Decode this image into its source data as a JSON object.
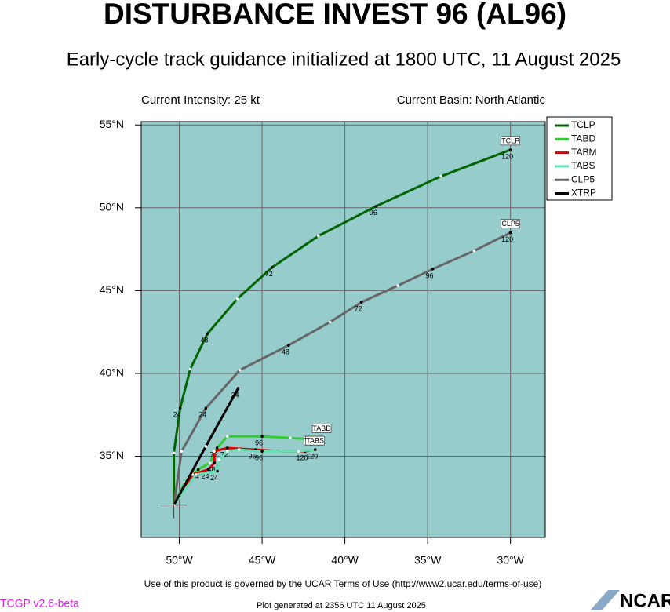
{
  "chart_data": {
    "type": "line",
    "title": "DISTURBANCE INVEST 96 (AL96)",
    "subtitle": "Early-cycle track guidance initialized at 1800 UTC, 11 August 2025",
    "intensity": "Current Intensity: 25 kt",
    "basin": "Current Basin: North Atlantic",
    "terms": "Use of this product is governed by the UCAR Terms of Use (http://www2.ucar.edu/terms-of-use)",
    "version": "TCGP v2.6-beta",
    "generated": "Plot generated at 2356 UTC   11 August 2025",
    "logo": "NCAR",
    "background": "#96cccc",
    "grid": true,
    "xlim": [
      -52.3,
      -27.9
    ],
    "ylim": [
      30.1,
      55.2
    ],
    "xticks": [
      {
        "value": -50,
        "label": "50°W"
      },
      {
        "value": -45,
        "label": "45°W"
      },
      {
        "value": -40,
        "label": "40°W"
      },
      {
        "value": -35,
        "label": "35°W"
      },
      {
        "value": -30,
        "label": "30°W"
      }
    ],
    "yticks": [
      {
        "value": 35,
        "label": "35°N"
      },
      {
        "value": 40,
        "label": "40°N"
      },
      {
        "value": 45,
        "label": "45°N"
      },
      {
        "value": 50,
        "label": "50°N"
      },
      {
        "value": 55,
        "label": "55°N"
      }
    ],
    "series": [
      {
        "name": "TCLP",
        "color": "#006400",
        "x": [
          -50.33,
          -50.33,
          -49.95,
          -49.34,
          -48.3,
          -46.5,
          -44.4,
          -41.6,
          -38.1,
          -34.2,
          -30.0
        ],
        "values": [
          32.06,
          35.2,
          37.9,
          40.26,
          42.4,
          44.5,
          46.4,
          48.3,
          50.1,
          51.9,
          53.5
        ],
        "labels": [
          null,
          null,
          "24",
          null,
          "48",
          null,
          "72",
          null,
          "96",
          null,
          "120"
        ]
      },
      {
        "name": "TABD",
        "color": "#33cc33",
        "x": [
          -50.33,
          -49.67,
          -48.86,
          -48.15,
          -47.72,
          -47.1,
          -45.0,
          -43.3,
          -41.4
        ],
        "values": [
          32.06,
          33.4,
          34.2,
          34.6,
          35.5,
          36.2,
          36.2,
          36.1,
          36.0
        ],
        "labels": [
          null,
          null,
          "24",
          null,
          "72",
          null,
          "96",
          null,
          null
        ]
      },
      {
        "name": "TABM",
        "color": "#dd0000",
        "x": [
          -50.33,
          -49.2,
          -48.25,
          -47.87,
          -47.9,
          -47.1,
          -45.4,
          -43.8,
          -42.4,
          -41.9
        ],
        "values": [
          32.06,
          33.9,
          34.2,
          34.6,
          35.3,
          35.5,
          35.4,
          35.3,
          35.3,
          35.4
        ],
        "labels": [
          null,
          null,
          "24",
          "48",
          null,
          "72",
          "96",
          null,
          "120",
          null
        ]
      },
      {
        "name": "TABS",
        "color": "#66e0b0",
        "x": [
          -50.33,
          -49.0,
          -47.7,
          -47.6,
          -47.1,
          -46.4,
          -45.0,
          -42.8,
          -41.8
        ],
        "values": [
          32.06,
          33.9,
          34.1,
          34.8,
          35.3,
          35.4,
          35.3,
          35.3,
          35.4
        ],
        "labels": [
          null,
          null,
          "24",
          null,
          null,
          null,
          "96",
          null,
          "120"
        ]
      },
      {
        "name": "CLP5",
        "color": "#666666",
        "x": [
          -50.33,
          -49.86,
          -48.4,
          -46.35,
          -43.4,
          -40.9,
          -39.0,
          -36.8,
          -34.7,
          -32.2,
          -30.0
        ],
        "values": [
          32.06,
          35.3,
          37.9,
          40.2,
          41.7,
          43.1,
          44.3,
          45.3,
          46.3,
          47.4,
          48.5
        ],
        "labels": [
          null,
          null,
          "24",
          null,
          "48",
          null,
          "72",
          null,
          "96",
          null,
          "120"
        ]
      },
      {
        "name": "XTRP",
        "color": "#000000",
        "x": [
          -50.33,
          -48.4,
          -46.45
        ],
        "values": [
          32.06,
          35.6,
          39.1
        ],
        "labels": [
          null,
          null,
          "24"
        ]
      }
    ]
  }
}
